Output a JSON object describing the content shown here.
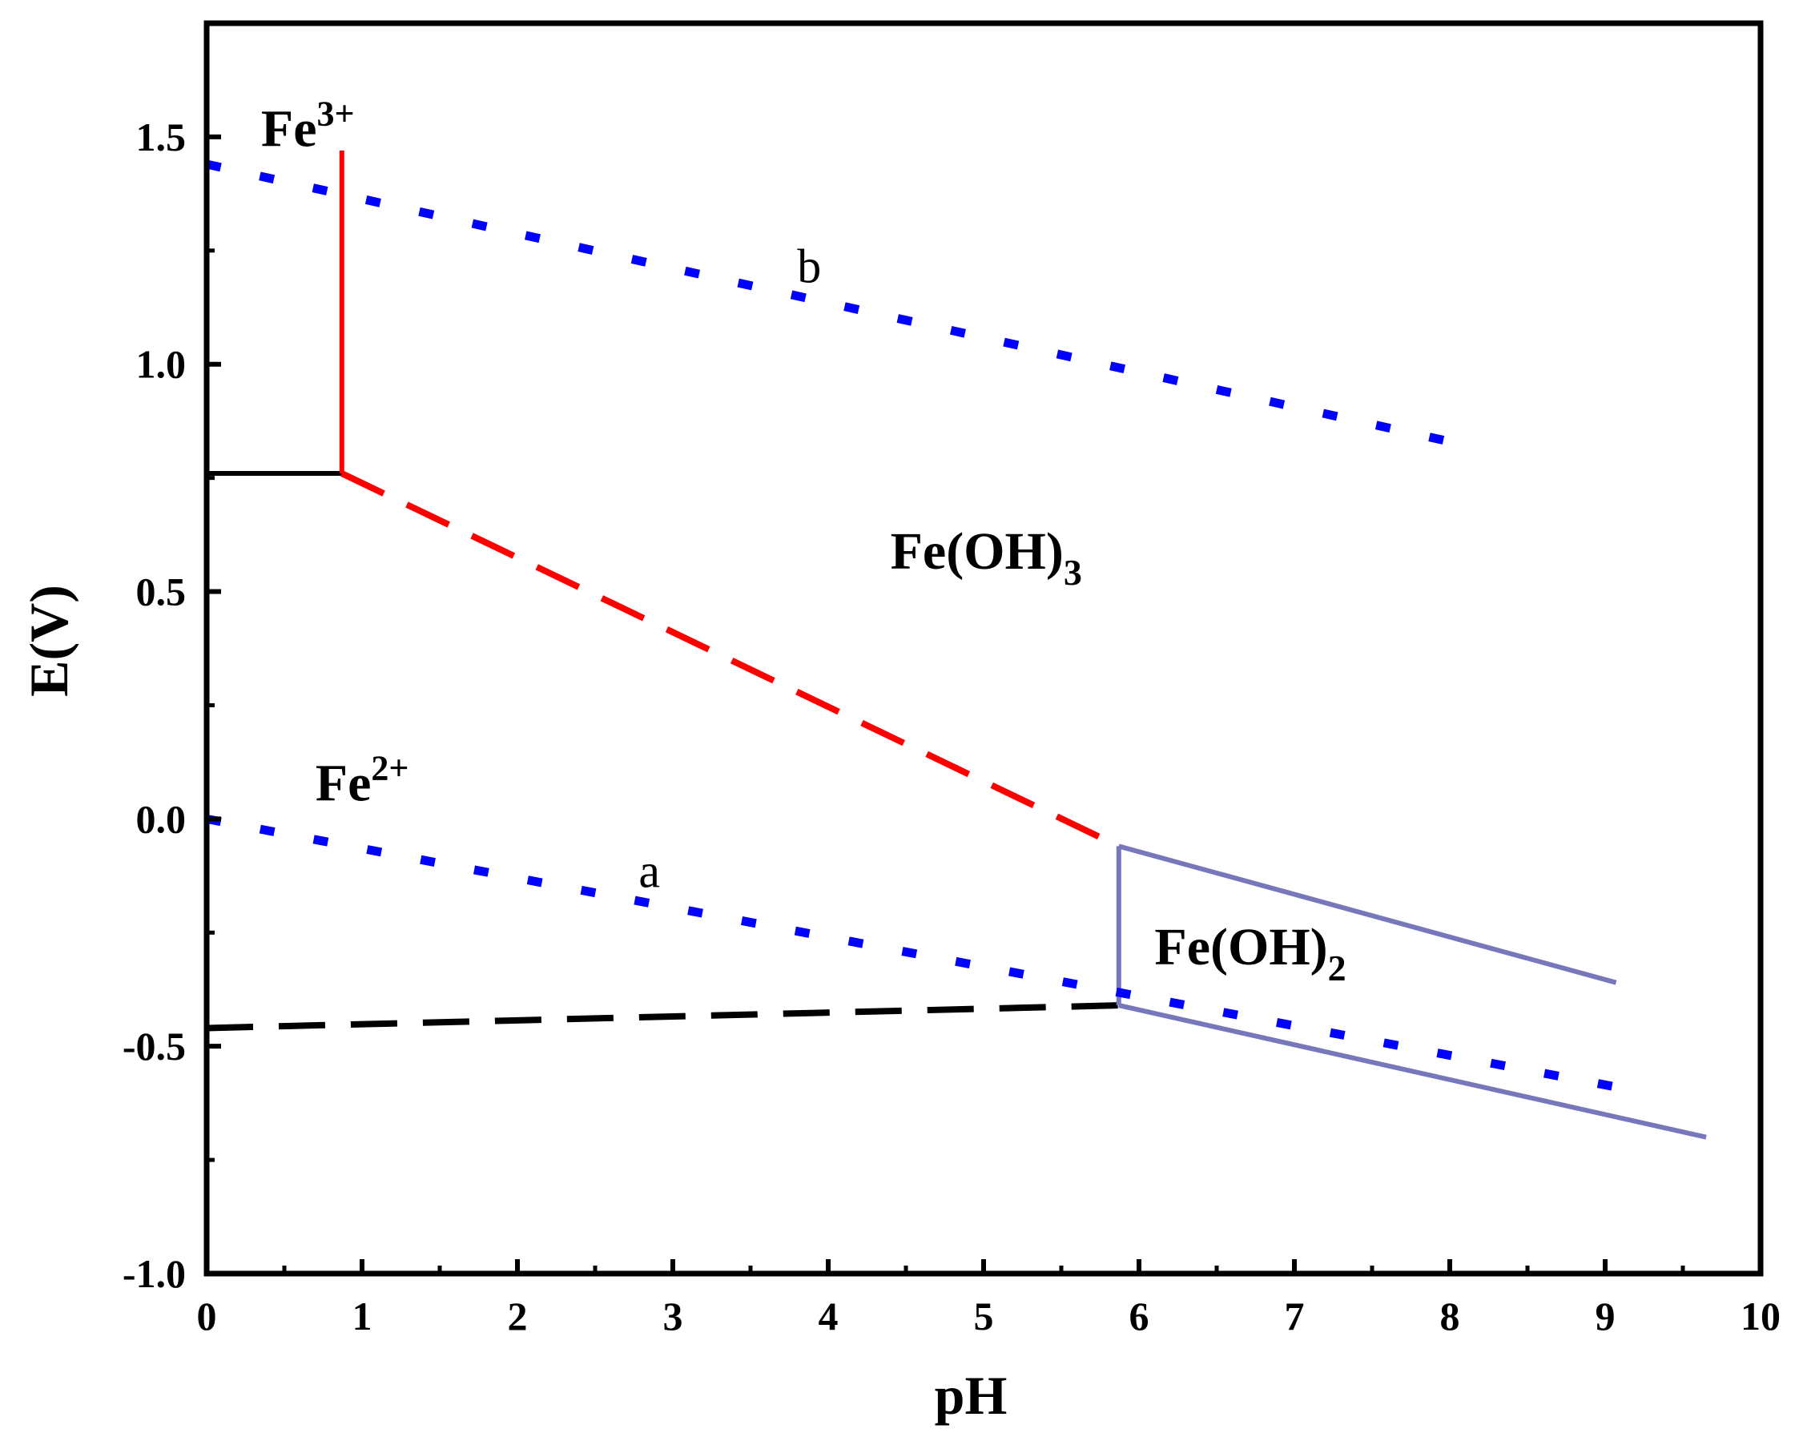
{
  "chart_data": {
    "type": "line",
    "xlabel": "pH",
    "ylabel": "E(V)",
    "xlim": [
      0,
      10
    ],
    "ylim": [
      -1.0,
      1.75
    ],
    "x_ticks": [
      "0",
      "1",
      "2",
      "3",
      "4",
      "5",
      "6",
      "7",
      "8",
      "9",
      "10"
    ],
    "y_ticks": [
      "-1.0",
      "-0.5",
      "0.0",
      "0.5",
      "1.0",
      "1.5"
    ],
    "grid": false,
    "series": [
      {
        "color": "#000000",
        "style": "solid",
        "width": 6,
        "x": [
          0,
          0.87
        ],
        "y": [
          0.76,
          0.76
        ]
      },
      {
        "color": "#ff0000",
        "style": "solid",
        "width": 6,
        "x": [
          0.87,
          0.87
        ],
        "y": [
          0.76,
          1.47
        ]
      },
      {
        "color": "#ff0000",
        "style": "dashed",
        "width": 8,
        "x": [
          0.87,
          5.87
        ],
        "y": [
          0.76,
          -0.06
        ]
      },
      {
        "color": "#000000",
        "style": "dashed",
        "width": 8,
        "x": [
          0,
          5.87
        ],
        "y": [
          -0.46,
          -0.41
        ]
      },
      {
        "color": "#7777bb",
        "style": "solid",
        "width": 6,
        "x": [
          5.87,
          5.87
        ],
        "y": [
          -0.06,
          -0.41
        ]
      },
      {
        "color": "#7777bb",
        "style": "solid",
        "width": 6,
        "x": [
          5.87,
          9.07
        ],
        "y": [
          -0.06,
          -0.36
        ]
      },
      {
        "color": "#7777bb",
        "style": "solid",
        "width": 6,
        "x": [
          5.87,
          9.65
        ],
        "y": [
          -0.41,
          -0.7
        ]
      },
      {
        "name": "b",
        "color": "#0000ff",
        "style": "dotted",
        "width": 11,
        "x": [
          0,
          8.13
        ],
        "y": [
          1.44,
          0.82
        ]
      },
      {
        "name": "a",
        "color": "#0000ff",
        "style": "dotted",
        "width": 11,
        "x": [
          0,
          9.23
        ],
        "y": [
          0.0,
          -0.6
        ]
      }
    ],
    "annotations": [
      {
        "id": "fe3",
        "base": "Fe",
        "sup": "3+",
        "sub": "",
        "x": 0.35,
        "y": 1.48,
        "kind": "region"
      },
      {
        "id": "feoh3",
        "base": "Fe(OH)",
        "sup": "",
        "sub": "3",
        "x": 4.4,
        "y": 0.55,
        "kind": "region"
      },
      {
        "id": "fe2",
        "base": "Fe",
        "sup": "2+",
        "sub": "",
        "x": 0.7,
        "y": 0.04,
        "kind": "region"
      },
      {
        "id": "feoh2",
        "base": "Fe(OH)",
        "sup": "",
        "sub": "2",
        "x": 6.1,
        "y": -0.32,
        "kind": "region"
      },
      {
        "id": "label-b",
        "base": "b",
        "sup": "",
        "sub": "",
        "x": 3.8,
        "y": 1.18,
        "kind": "line"
      },
      {
        "id": "label-a",
        "base": "a",
        "sup": "",
        "sub": "",
        "x": 2.78,
        "y": -0.15,
        "kind": "line"
      }
    ]
  }
}
